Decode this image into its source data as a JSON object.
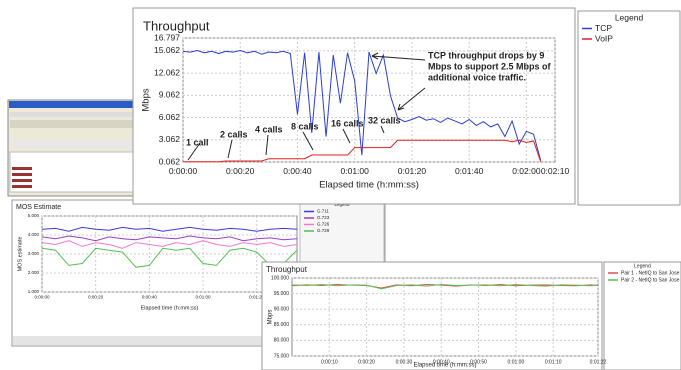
{
  "chart_data": [
    {
      "type": "line",
      "title": "Throughput",
      "y_label": "Mbps",
      "x_label": "Elapsed time (h:mm:ss)",
      "legend_title": "Legend",
      "x": [
        0,
        2.5,
        5,
        7.5,
        10,
        12.5,
        15,
        17.5,
        20,
        22.5,
        25,
        27.5,
        30,
        32.5,
        35,
        37.5,
        40,
        42.5,
        45,
        47.5,
        50,
        52.5,
        55,
        57.5,
        60,
        62.5,
        65,
        67.5,
        70,
        72.5,
        75,
        77.5,
        80,
        82.5,
        85,
        87.5,
        90,
        92.5,
        95,
        97.5,
        100,
        102.5,
        105,
        107.5,
        110,
        112.5,
        115,
        117.5,
        120,
        122.5,
        125
      ],
      "series": [
        {
          "name": "TCP",
          "color": "#2b3fcf",
          "values": [
            15.0,
            14.9,
            15.1,
            14.8,
            15.0,
            14.7,
            15.0,
            14.9,
            15.1,
            14.8,
            15.0,
            14.6,
            14.9,
            14.8,
            15.0,
            14.7,
            6.5,
            14.8,
            4.0,
            14.9,
            3.5,
            14.5,
            8.0,
            14.8,
            11.0,
            1.0,
            14.9,
            12.0,
            14.5,
            9.0,
            6.0,
            5.5,
            5.8,
            6.2,
            5.7,
            5.9,
            5.4,
            6.0,
            5.6,
            5.2,
            5.8,
            5.0,
            5.5,
            4.8,
            5.2,
            3.5,
            5.6,
            2.5,
            4.2,
            3.8,
            0.3
          ]
        },
        {
          "name": "VoIP",
          "color": "#e02020",
          "values": [
            0.1,
            0.1,
            0.1,
            0.1,
            0.1,
            0.1,
            0.2,
            0.2,
            0.2,
            0.2,
            0.2,
            0.2,
            0.5,
            0.5,
            0.5,
            0.5,
            0.5,
            0.5,
            1.0,
            1.0,
            1.0,
            1.0,
            1.0,
            1.0,
            2.0,
            2.0,
            2.0,
            2.0,
            2.0,
            2.0,
            3.0,
            3.0,
            3.0,
            3.0,
            3.0,
            3.0,
            3.0,
            3.0,
            3.0,
            3.0,
            3.0,
            3.0,
            3.0,
            3.0,
            3.0,
            3.0,
            2.8,
            3.0,
            2.7,
            2.9,
            0.1
          ]
        }
      ],
      "xlim": [
        0,
        130
      ],
      "xticks": [
        {
          "value": 0,
          "label": "0:00:00"
        },
        {
          "value": 20,
          "label": "0:00:20"
        },
        {
          "value": 40,
          "label": "0:00:40"
        },
        {
          "value": 60,
          "label": "0:01:00"
        },
        {
          "value": 80,
          "label": "0:01:20"
        },
        {
          "value": 100,
          "label": "0:01:40"
        },
        {
          "value": 120,
          "label": "0:02:00"
        },
        {
          "value": 130,
          "label": "0:02:10"
        }
      ],
      "ylim": [
        0.062,
        16.797
      ],
      "yticks": [
        0.062,
        3.062,
        6.062,
        9.062,
        12.062,
        15.062,
        16.797
      ],
      "grid": true,
      "annotations": [
        "1 call",
        "2 calls",
        "4 calls",
        "8 calls",
        "16 calls",
        "32 calls",
        "TCP throughput drops by 9",
        "Mbps to support 2.5 Mbps of",
        "additional voice traffic."
      ]
    },
    {
      "type": "line",
      "title": "MOS Estimate",
      "y_label": "MOS estimate",
      "x_label": "Elapsed time (h:mm:ss)",
      "legend_title": "Legend",
      "x": [
        0,
        5,
        10,
        15,
        20,
        25,
        30,
        35,
        40,
        45,
        50,
        55,
        60,
        65,
        70,
        75,
        80,
        85,
        90,
        95
      ],
      "series": [
        {
          "name": "G.711",
          "color": "#3a3ad8",
          "values": [
            4.3,
            4.35,
            4.2,
            4.4,
            4.3,
            4.25,
            4.4,
            4.3,
            4.35,
            4.2,
            4.3,
            4.4,
            4.3,
            4.25,
            4.35,
            4.3,
            4.2,
            4.3,
            4.35,
            4.3
          ]
        },
        {
          "name": "G.723",
          "color": "#9b3fc4",
          "values": [
            3.9,
            3.8,
            3.95,
            3.85,
            3.7,
            3.9,
            3.8,
            3.75,
            3.9,
            3.85,
            3.8,
            3.95,
            3.85,
            3.8,
            3.9,
            3.7,
            3.8,
            3.85,
            3.75,
            3.8
          ]
        },
        {
          "name": "G.726",
          "color": "#f07ad0",
          "values": [
            3.6,
            3.5,
            3.7,
            3.4,
            3.6,
            3.5,
            3.3,
            3.6,
            3.5,
            3.4,
            3.6,
            3.5,
            3.7,
            3.5,
            3.4,
            3.6,
            3.5,
            3.6,
            3.4,
            3.5
          ]
        },
        {
          "name": "G.729",
          "color": "#4fc24f",
          "values": [
            3.3,
            3.2,
            2.4,
            2.5,
            3.3,
            3.2,
            3.1,
            2.3,
            2.4,
            3.3,
            3.2,
            3.3,
            2.5,
            2.4,
            3.2,
            3.3,
            3.1,
            2.4,
            2.5,
            3.2
          ]
        }
      ],
      "xlim": [
        0,
        95
      ],
      "xticks": [
        {
          "value": 0,
          "label": "0:00:00"
        },
        {
          "value": 20,
          "label": "0:00:20"
        },
        {
          "value": 40,
          "label": "0:00:40"
        },
        {
          "value": 60,
          "label": "0:01:00"
        },
        {
          "value": 80,
          "label": "0:01:20"
        }
      ],
      "ylim": [
        1,
        5
      ],
      "yticks": [
        {
          "value": 1,
          "label": "1.000"
        },
        {
          "value": 2,
          "label": "2.000"
        },
        {
          "value": 3,
          "label": "3.000"
        },
        {
          "value": 4,
          "label": "4.000"
        },
        {
          "value": 5,
          "label": "5.000"
        }
      ],
      "grid": true
    },
    {
      "type": "line",
      "title": "Throughput",
      "y_label": "Mbps",
      "x_label": "Elapsed time (h:mm:ss)",
      "legend_title": "Legend",
      "x": [
        0,
        4,
        8,
        12,
        16,
        20,
        24,
        28,
        32,
        36,
        40,
        44,
        48,
        52,
        56,
        60,
        64,
        68,
        72,
        76,
        80,
        82
      ],
      "series": [
        {
          "name": "Pair 1 - NetIQ to San Jose",
          "color": "#e05050",
          "values": [
            97.5,
            97.8,
            97.6,
            97.9,
            97.7,
            97.6,
            96.8,
            97.8,
            97.5,
            97.9,
            97.7,
            97.4,
            97.8,
            97.6,
            97.9,
            97.5,
            97.7,
            97.8,
            97.6,
            97.5,
            97.8,
            97.6
          ]
        },
        {
          "name": "Pair 2 - NetIQ to San Jose",
          "color": "#58c058",
          "values": [
            97.8,
            97.6,
            97.9,
            97.5,
            97.8,
            97.7,
            96.5,
            97.6,
            97.8,
            97.4,
            97.9,
            97.6,
            97.7,
            97.8,
            97.5,
            97.9,
            97.6,
            97.4,
            97.8,
            97.7,
            97.5,
            97.8
          ]
        }
      ],
      "xlim": [
        0,
        82
      ],
      "xticks": [
        {
          "value": 10,
          "label": "0:00:10"
        },
        {
          "value": 20,
          "label": "0:00:20"
        },
        {
          "value": 30,
          "label": "0:00:30"
        },
        {
          "value": 40,
          "label": "0:00:40"
        },
        {
          "value": 50,
          "label": "0:00:50"
        },
        {
          "value": 60,
          "label": "0:01:00"
        },
        {
          "value": 70,
          "label": "0:01:10"
        },
        {
          "value": 82,
          "label": "0:01:22"
        }
      ],
      "ylim": [
        75,
        100
      ],
      "yticks": [
        {
          "value": 75,
          "label": "75.000"
        },
        {
          "value": 80,
          "label": "80.000"
        },
        {
          "value": 85,
          "label": "85.000"
        },
        {
          "value": 90,
          "label": "90.000"
        },
        {
          "value": 95,
          "label": "95.000"
        },
        {
          "value": 100,
          "label": "100.000"
        }
      ],
      "grid": true
    }
  ]
}
